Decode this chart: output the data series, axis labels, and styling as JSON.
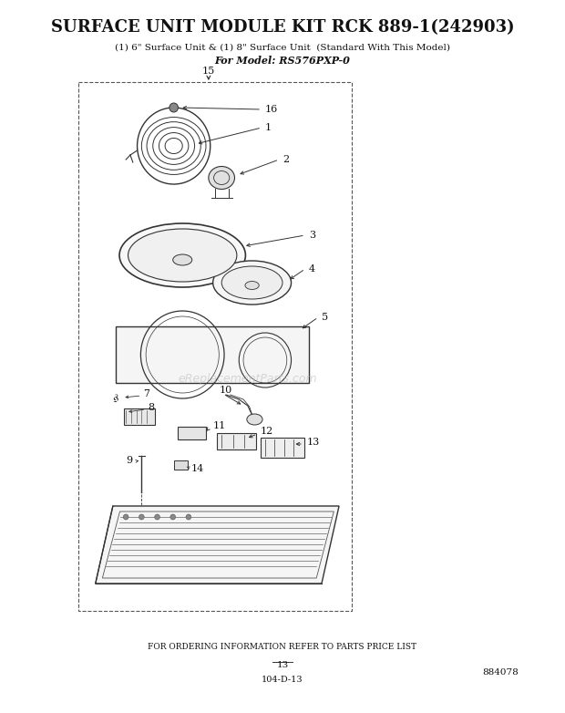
{
  "title_bold": "SURFACE UNIT MODULE KIT RCK 889-1(242903)",
  "subtitle1": "(1) 6\" Surface Unit & (1) 8\" Surface Unit  (Standard With This Model)",
  "subtitle2": "For Model: RS576PXP-0",
  "footer1": "FOR ORDERING INFORMATION REFER TO PARTS PRICE LIST",
  "footer2": "13",
  "footer3": "104-D-13",
  "footer4": "884078",
  "bg_color": "#ffffff",
  "watermark": "eReplacementParts.com"
}
